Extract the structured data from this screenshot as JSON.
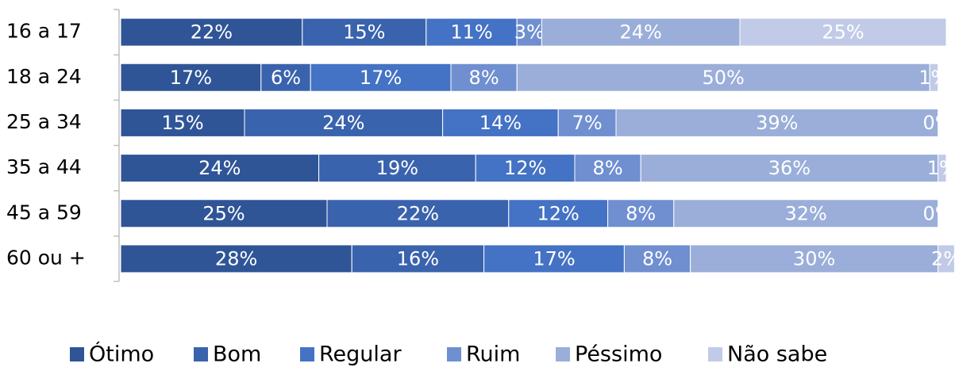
{
  "chart_data": {
    "type": "stacked-bar-horizontal",
    "categories": [
      "16 a 17",
      "18 a 24",
      "25 a 34",
      "35 a 44",
      "45 a 59",
      "60 ou +"
    ],
    "xlim": [
      0,
      100
    ],
    "legend": "bottom",
    "series": [
      {
        "name": "Ótimo",
        "color": "#2f5597",
        "values": [
          22,
          17,
          15,
          24,
          25,
          28
        ],
        "value_labels": [
          "22%",
          "17%",
          "15%",
          "24%",
          "25%",
          "28%"
        ]
      },
      {
        "name": "Bom",
        "color": "#3a63ad",
        "values": [
          15,
          6,
          24,
          19,
          22,
          16
        ],
        "value_labels": [
          "15%",
          "6%",
          "24%",
          "19%",
          "22%",
          "16%"
        ]
      },
      {
        "name": "Regular",
        "color": "#4472c4",
        "values": [
          11,
          17,
          14,
          12,
          12,
          17
        ],
        "value_labels": [
          "11%",
          "17%",
          "14%",
          "12%",
          "12%",
          "17%"
        ]
      },
      {
        "name": "Ruim",
        "color": "#6f8fd0",
        "values": [
          3,
          8,
          7,
          8,
          8,
          8
        ],
        "value_labels": [
          "3%",
          "8%",
          "7%",
          "8%",
          "8%",
          "8%"
        ]
      },
      {
        "name": "Péssimo",
        "color": "#9aaed9",
        "values": [
          24,
          50,
          39,
          36,
          32,
          30
        ],
        "value_labels": [
          "24%",
          "50%",
          "39%",
          "36%",
          "32%",
          "30%"
        ]
      },
      {
        "name": "Não sabe",
        "color": "#c1cbe7",
        "values": [
          25,
          1,
          0,
          1,
          0,
          2
        ],
        "value_labels": [
          "25%",
          "1%",
          "0%",
          "1%",
          "0%",
          "2%"
        ]
      }
    ]
  }
}
